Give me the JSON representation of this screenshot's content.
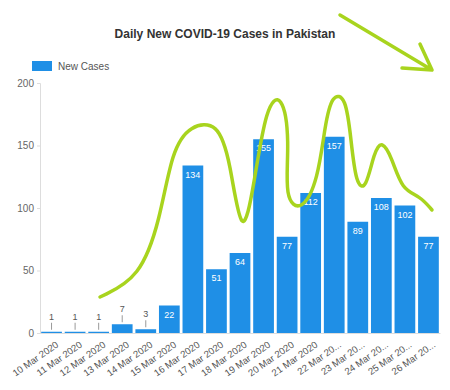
{
  "chart_data": {
    "type": "bar",
    "title": "Daily New COVID-19 Cases in Pakistan",
    "categories": [
      "10 Mar 2020",
      "11 Mar 2020",
      "12 Mar 2020",
      "13 Mar 2020",
      "14 Mar 2020",
      "15 Mar 2020",
      "16 Mar 2020",
      "17 Mar 2020",
      "18 Mar 2020",
      "19 Mar 2020",
      "20 Mar 2020",
      "21 Mar 2020",
      "22 Mar 20...",
      "23 Mar 20...",
      "24 Mar 20...",
      "25 Mar 20...",
      "26 Mar 20..."
    ],
    "series": [
      {
        "name": "New Cases",
        "color": "#1f8fe6",
        "values": [
          1,
          1,
          1,
          7,
          3,
          22,
          134,
          51,
          64,
          155,
          77,
          112,
          157,
          89,
          108,
          102,
          77
        ]
      }
    ],
    "ylim": [
      0,
      200
    ],
    "yticks": [
      0,
      50,
      100,
      150,
      200
    ],
    "grid": false,
    "legend": "top-left",
    "data_labels": true
  }
}
